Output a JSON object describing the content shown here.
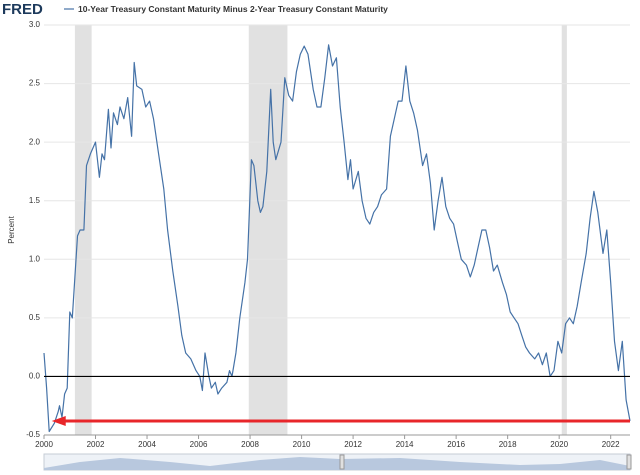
{
  "chart_data": {
    "type": "line",
    "logo": "FRED",
    "ylabel": "Percent",
    "xlim": [
      2000,
      2022.75
    ],
    "ylim": [
      -0.5,
      3.0
    ],
    "xticks": [
      2000,
      2002,
      2004,
      2006,
      2008,
      2010,
      2012,
      2014,
      2016,
      2018,
      2020,
      2022
    ],
    "yticks": [
      -0.5,
      {
        "value": 0,
        "label": "0.0"
      },
      0.5,
      {
        "value": 1,
        "label": "1.0"
      },
      1.5,
      {
        "value": 2,
        "label": "2.0"
      },
      2.5,
      {
        "value": 3,
        "label": "3.0"
      }
    ],
    "grid": true,
    "recessions": [
      [
        2001.2,
        2001.85
      ],
      [
        2007.95,
        2009.45
      ],
      [
        2020.1,
        2020.3
      ]
    ],
    "annotations": [
      {
        "type": "hline",
        "y": 0,
        "color": "#000000"
      },
      {
        "type": "arrow",
        "y": -0.38,
        "x": [
          2022.75,
          2000.3
        ],
        "color": "#e8262a"
      }
    ],
    "series": [
      {
        "name": "10-Year Treasury Constant Maturity Minus 2-Year Treasury Constant Maturity",
        "color": "#4572a7",
        "x": [
          2000.0,
          2000.1,
          2000.2,
          2000.4,
          2000.55,
          2000.6,
          2000.7,
          2000.8,
          2000.9,
          2001.0,
          2001.1,
          2001.3,
          2001.4,
          2001.55,
          2001.65,
          2001.8,
          2002.0,
          2002.15,
          2002.25,
          2002.35,
          2002.5,
          2002.6,
          2002.7,
          2002.85,
          2002.95,
          2003.1,
          2003.25,
          2003.4,
          2003.5,
          2003.6,
          2003.8,
          2003.95,
          2004.1,
          2004.25,
          2004.45,
          2004.65,
          2004.8,
          2005.0,
          2005.2,
          2005.35,
          2005.5,
          2005.7,
          2005.9,
          2006.05,
          2006.15,
          2006.25,
          2006.4,
          2006.5,
          2006.65,
          2006.75,
          2006.9,
          2007.1,
          2007.2,
          2007.3,
          2007.45,
          2007.6,
          2007.8,
          2007.9,
          2008.05,
          2008.15,
          2008.3,
          2008.4,
          2008.5,
          2008.65,
          2008.8,
          2008.9,
          2009.0,
          2009.2,
          2009.35,
          2009.5,
          2009.65,
          2009.8,
          2009.95,
          2010.1,
          2010.25,
          2010.45,
          2010.6,
          2010.75,
          2010.9,
          2011.05,
          2011.2,
          2011.35,
          2011.5,
          2011.65,
          2011.8,
          2011.9,
          2012.0,
          2012.2,
          2012.35,
          2012.5,
          2012.65,
          2012.8,
          2012.95,
          2013.1,
          2013.3,
          2013.45,
          2013.6,
          2013.75,
          2013.9,
          2014.05,
          2014.2,
          2014.35,
          2014.5,
          2014.7,
          2014.85,
          2015.0,
          2015.15,
          2015.3,
          2015.45,
          2015.6,
          2015.75,
          2015.9,
          2016.05,
          2016.2,
          2016.4,
          2016.55,
          2016.7,
          2016.85,
          2017.0,
          2017.15,
          2017.3,
          2017.45,
          2017.6,
          2017.8,
          2017.95,
          2018.1,
          2018.25,
          2018.4,
          2018.55,
          2018.7,
          2018.85,
          2019.05,
          2019.2,
          2019.35,
          2019.5,
          2019.65,
          2019.8,
          2019.95,
          2020.1,
          2020.25,
          2020.4,
          2020.55,
          2020.7,
          2020.85,
          2021.05,
          2021.2,
          2021.35,
          2021.5,
          2021.7,
          2021.85,
          2022.0,
          2022.15,
          2022.3,
          2022.45,
          2022.6,
          2022.75
        ],
        "values": [
          0.2,
          -0.1,
          -0.47,
          -0.4,
          -0.3,
          -0.25,
          -0.35,
          -0.15,
          -0.1,
          0.55,
          0.5,
          1.2,
          1.25,
          1.25,
          1.8,
          1.9,
          2.0,
          1.7,
          1.9,
          1.85,
          2.28,
          1.95,
          2.25,
          2.15,
          2.3,
          2.2,
          2.38,
          2.05,
          2.68,
          2.48,
          2.45,
          2.3,
          2.35,
          2.2,
          1.9,
          1.6,
          1.25,
          0.9,
          0.6,
          0.35,
          0.2,
          0.15,
          0.05,
          0.0,
          -0.12,
          0.2,
          0.0,
          -0.1,
          -0.05,
          -0.15,
          -0.1,
          -0.05,
          0.05,
          0.0,
          0.2,
          0.5,
          0.8,
          1.0,
          1.85,
          1.8,
          1.5,
          1.4,
          1.45,
          1.75,
          2.45,
          2.0,
          1.85,
          2.0,
          2.55,
          2.4,
          2.35,
          2.6,
          2.75,
          2.82,
          2.75,
          2.45,
          2.3,
          2.3,
          2.55,
          2.83,
          2.65,
          2.72,
          2.3,
          2.0,
          1.68,
          1.85,
          1.6,
          1.75,
          1.5,
          1.35,
          1.3,
          1.4,
          1.45,
          1.55,
          1.6,
          2.05,
          2.2,
          2.35,
          2.35,
          2.65,
          2.35,
          2.25,
          2.1,
          1.8,
          1.9,
          1.65,
          1.25,
          1.5,
          1.7,
          1.45,
          1.35,
          1.3,
          1.15,
          1.0,
          0.95,
          0.85,
          0.95,
          1.1,
          1.25,
          1.25,
          1.1,
          0.9,
          0.95,
          0.8,
          0.7,
          0.55,
          0.5,
          0.45,
          0.35,
          0.25,
          0.2,
          0.15,
          0.2,
          0.1,
          0.2,
          0.0,
          0.05,
          0.3,
          0.2,
          0.45,
          0.5,
          0.45,
          0.6,
          0.8,
          1.05,
          1.35,
          1.58,
          1.4,
          1.05,
          1.25,
          0.8,
          0.3,
          0.05,
          0.3,
          -0.2,
          -0.38
        ]
      }
    ]
  }
}
